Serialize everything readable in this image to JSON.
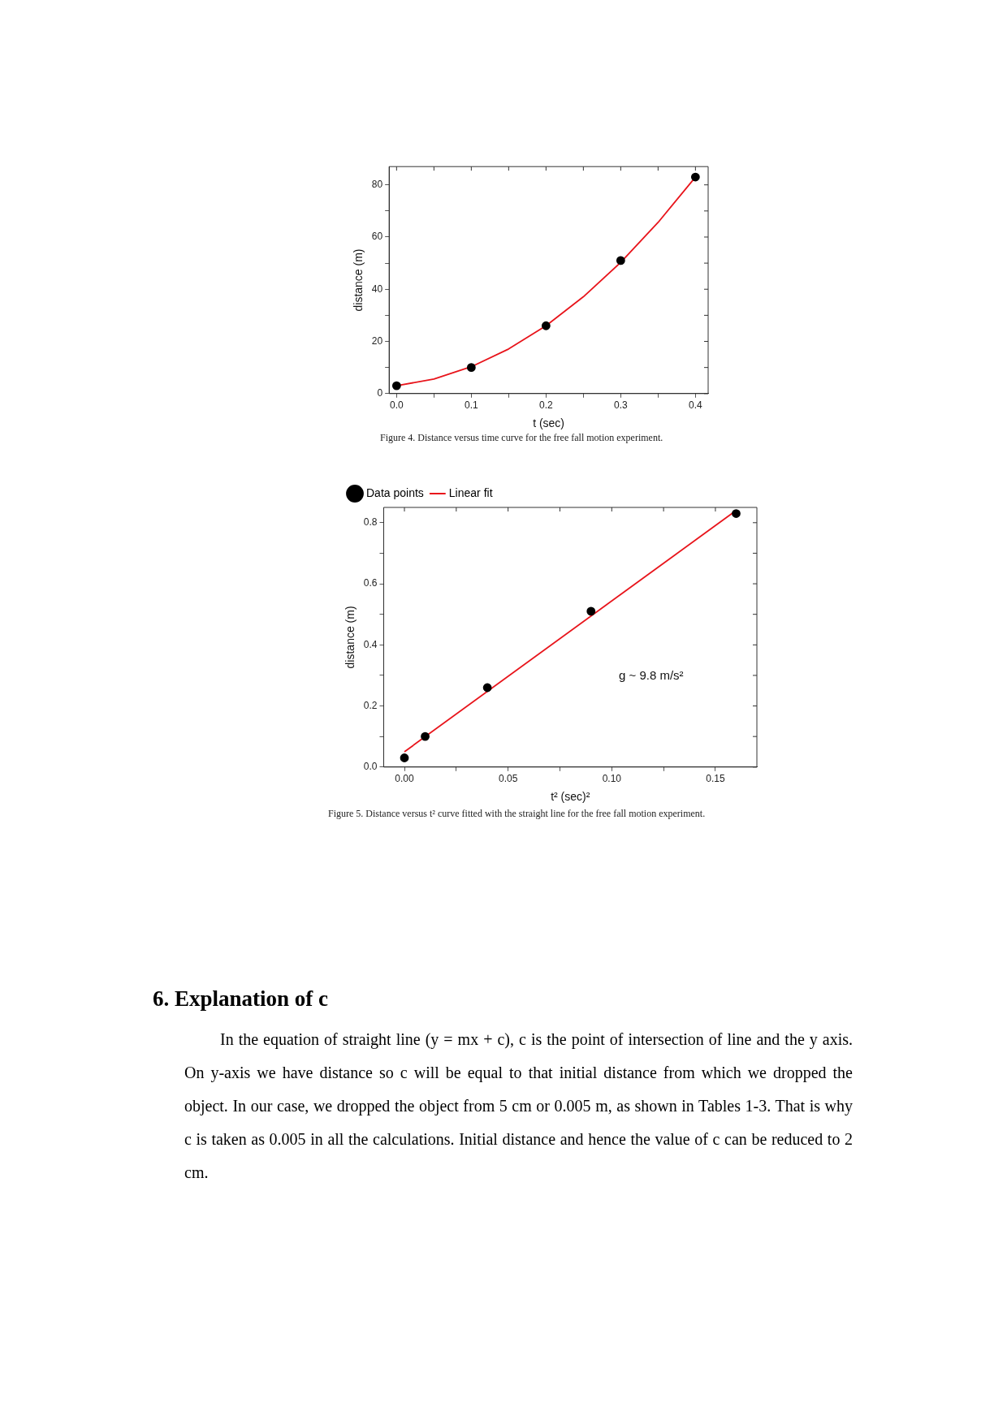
{
  "chart_data": [
    {
      "type": "scatter",
      "title": "Figure 4. Distance versus time curve for the free fall motion experiment.",
      "xlabel": "t (sec)",
      "ylabel": "distance (m)",
      "xlim": [
        -0.01,
        0.417
      ],
      "xticks": [
        {
          "value": 0,
          "label": "0.0"
        },
        {
          "value": 0.05,
          "label": null
        },
        {
          "value": 0.1,
          "label": "0.1"
        },
        {
          "value": 0.15,
          "label": null
        },
        {
          "value": 0.2,
          "label": "0.2"
        },
        {
          "value": 0.25,
          "label": null
        },
        {
          "value": 0.3,
          "label": "0.3"
        },
        {
          "value": 0.35,
          "label": null
        },
        {
          "value": 0.4,
          "label": "0.4"
        }
      ],
      "ylim": [
        0,
        87
      ],
      "yticks": [
        0,
        {
          "value": 10,
          "label": null
        },
        20,
        {
          "value": 30,
          "label": null
        },
        40,
        {
          "value": 50,
          "label": null
        },
        60,
        {
          "value": 70,
          "label": null
        },
        80
      ],
      "grid": false,
      "legend": false,
      "series": [
        {
          "type": "line",
          "color": "#e8141b",
          "marker": "none",
          "x": [
            0,
            0.05,
            0.1,
            0.15,
            0.2,
            0.25,
            0.3,
            0.35,
            0.4
          ],
          "values": [
            3,
            5.6,
            10.3,
            17.1,
            26,
            37.1,
            50.3,
            65.6,
            83
          ]
        },
        {
          "type": "scatter",
          "color": "#000000",
          "marker": "circle",
          "x": [
            0,
            0.1,
            0.2,
            0.3,
            0.4
          ],
          "values": [
            3,
            10,
            26,
            51,
            83
          ]
        }
      ]
    },
    {
      "type": "scatter",
      "title": "Figure 5. Distance versus t² curve fitted with the straight line for the free fall motion experiment.",
      "xlabel": "t² (sec)²",
      "ylabel": "distance (m)",
      "xlim": [
        -0.01,
        0.17
      ],
      "xticks": [
        {
          "value": 0,
          "label": "0.00"
        },
        {
          "value": 0.025,
          "label": null
        },
        {
          "value": 0.05,
          "label": "0.05"
        },
        {
          "value": 0.075,
          "label": null
        },
        {
          "value": 0.1,
          "label": "0.10"
        },
        {
          "value": 0.125,
          "label": null
        },
        {
          "value": 0.15,
          "label": "0.15"
        }
      ],
      "ylim": [
        0,
        0.85
      ],
      "yticks": [
        {
          "value": 0,
          "label": "0.0"
        },
        {
          "value": 0.1,
          "label": null
        },
        0.2,
        {
          "value": 0.3,
          "label": null
        },
        0.4,
        {
          "value": 0.5,
          "label": null
        },
        0.6,
        {
          "value": 0.7,
          "label": null
        },
        0.8
      ],
      "grid": false,
      "legend": "top left",
      "annotations": [
        "g ~ 9.8 m/s²"
      ],
      "series": [
        {
          "name": "Data points",
          "type": "scatter",
          "color": "#000000",
          "marker": "circle",
          "x": [
            0,
            0.01,
            0.04,
            0.09,
            0.16
          ],
          "values": [
            0.03,
            0.1,
            0.26,
            0.51,
            0.83
          ]
        },
        {
          "name": "Linear fit",
          "type": "line",
          "color": "#e8141b",
          "marker": "none",
          "x": [
            0,
            0.16
          ],
          "values": [
            0.05,
            0.84
          ]
        }
      ]
    },
    {
      "type": "other",
      "title": "6.  Explanation of c",
      "annotations": [
        "In the equation of straight line (y = mx + c), c is the point of intersection of line and the y axis. On y-axis we have distance so c will be equal to that initial distance from which we dropped the object. In our case, we dropped the object from 5 cm or 0.005 m, as shown in Tables 1-3. That is why c is taken as 0.005 in all the calculations. Initial distance and hence the value of c can be reduced to 2 cm."
      ]
    }
  ]
}
